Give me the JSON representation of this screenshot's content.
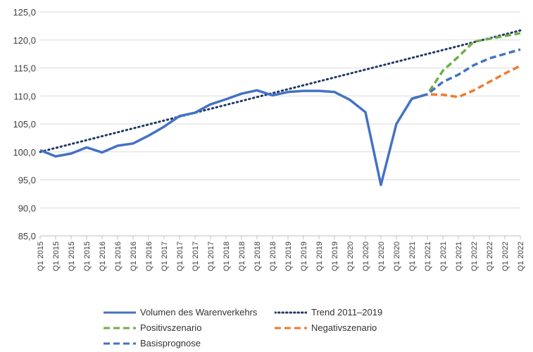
{
  "chart_data": {
    "type": "line",
    "categories": [
      "Q1 2015",
      "Q1 2015",
      "Q1 2015",
      "Q1 2015",
      "Q1 2016",
      "Q1 2016",
      "Q1 2016",
      "Q1 2016",
      "Q1 2017",
      "Q1 2017",
      "Q1 2017",
      "Q1 2017",
      "Q1 2018",
      "Q1 2018",
      "Q1 2018",
      "Q1 2018",
      "Q1 2019",
      "Q1 2019",
      "Q1 2019",
      "Q1 2019",
      "Q1 2020",
      "Q1 2020",
      "Q1 2020",
      "Q1 2020",
      "Q1 2021",
      "Q1 2021",
      "Q1 2021",
      "Q1 2021",
      "Q1 2022",
      "Q1 2022",
      "Q1 2022",
      "Q1 2022"
    ],
    "ylim": [
      85,
      125
    ],
    "yticks": [
      85,
      90,
      95,
      100,
      105,
      110,
      115,
      120,
      125
    ],
    "ytick_labels": [
      "85,0",
      "90,0",
      "95,0",
      "100,0",
      "105,0",
      "110,0",
      "115,0",
      "120,0",
      "125,0"
    ],
    "grid": "horizontal",
    "legend_position": "bottom",
    "series": [
      {
        "name": "Volumen des Warenverkehrs",
        "color": "#4472C4",
        "style": "solid",
        "values": [
          100.3,
          99.2,
          99.7,
          100.8,
          99.9,
          101.1,
          101.5,
          102.9,
          104.5,
          106.4,
          107.0,
          108.5,
          109.4,
          110.4,
          111.0,
          110.1,
          110.7,
          110.9,
          110.9,
          110.7,
          109.3,
          107.1,
          94.1,
          105.0,
          109.5,
          110.3,
          null,
          null,
          null,
          null,
          null,
          null
        ]
      },
      {
        "name": "Trend 2011–2019",
        "color": "#203864",
        "style": "dotted",
        "values": [
          100.0,
          100.7,
          101.4,
          102.1,
          102.8,
          103.5,
          104.2,
          104.9,
          105.6,
          106.3,
          107.0,
          107.7,
          108.4,
          109.1,
          109.8,
          110.5,
          111.2,
          111.9,
          112.6,
          113.3,
          114.0,
          114.7,
          115.4,
          116.1,
          116.8,
          117.5,
          118.2,
          118.9,
          119.6,
          120.3,
          121.0,
          121.7
        ]
      },
      {
        "name": "Positivszenario",
        "color": "#70AD47",
        "style": "dashed",
        "values": [
          null,
          null,
          null,
          null,
          null,
          null,
          null,
          null,
          null,
          null,
          null,
          null,
          null,
          null,
          null,
          null,
          null,
          null,
          null,
          null,
          null,
          null,
          null,
          null,
          109.5,
          110.3,
          114.5,
          117.0,
          119.7,
          120.2,
          120.7,
          121.2
        ]
      },
      {
        "name": "Negativszenario",
        "color": "#ED7D31",
        "style": "dashed",
        "values": [
          null,
          null,
          null,
          null,
          null,
          null,
          null,
          null,
          null,
          null,
          null,
          null,
          null,
          null,
          null,
          null,
          null,
          null,
          null,
          null,
          null,
          null,
          null,
          null,
          109.5,
          110.3,
          110.2,
          109.8,
          111.0,
          112.5,
          114.0,
          115.4
        ]
      },
      {
        "name": "Basisprognose",
        "color": "#4472C4",
        "style": "dashed",
        "values": [
          null,
          null,
          null,
          null,
          null,
          null,
          null,
          null,
          null,
          null,
          null,
          null,
          null,
          null,
          null,
          null,
          null,
          null,
          null,
          null,
          null,
          null,
          null,
          null,
          109.5,
          110.3,
          112.5,
          113.8,
          115.5,
          116.7,
          117.5,
          118.3
        ]
      }
    ]
  }
}
